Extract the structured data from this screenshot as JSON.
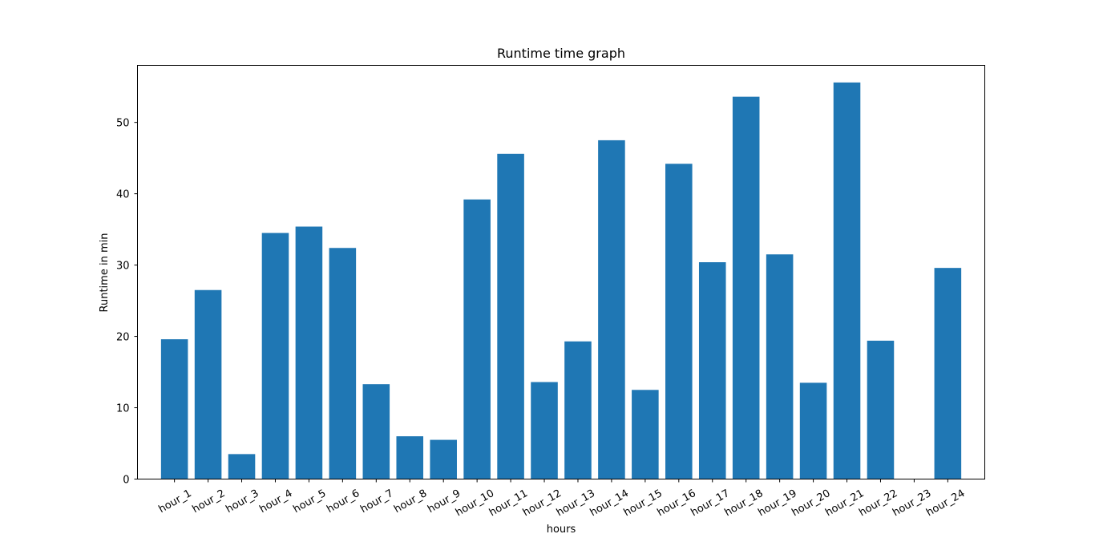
{
  "colors": {
    "bar": "#1f77b4",
    "axis": "#000000",
    "background": "#ffffff"
  },
  "chart_data": {
    "type": "bar",
    "title": "Runtime time graph",
    "xlabel": "hours",
    "ylabel": "Runtime in min",
    "ylim": [
      0,
      58
    ],
    "yticks": [
      0,
      10,
      20,
      30,
      40,
      50
    ],
    "grid": false,
    "categories": [
      "hour_1",
      "hour_2",
      "hour_3",
      "hour_4",
      "hour_5",
      "hour_6",
      "hour_7",
      "hour_8",
      "hour_9",
      "hour_10",
      "hour_11",
      "hour_12",
      "hour_13",
      "hour_14",
      "hour_15",
      "hour_16",
      "hour_17",
      "hour_18",
      "hour_19",
      "hour_20",
      "hour_21",
      "hour_22",
      "hour_23",
      "hour_24"
    ],
    "values": [
      19.6,
      26.5,
      3.5,
      34.5,
      35.4,
      32.4,
      13.3,
      6.0,
      5.5,
      39.2,
      45.6,
      13.6,
      19.3,
      47.5,
      12.5,
      44.2,
      30.4,
      53.6,
      31.5,
      13.5,
      55.6,
      19.4,
      0,
      29.6
    ]
  }
}
